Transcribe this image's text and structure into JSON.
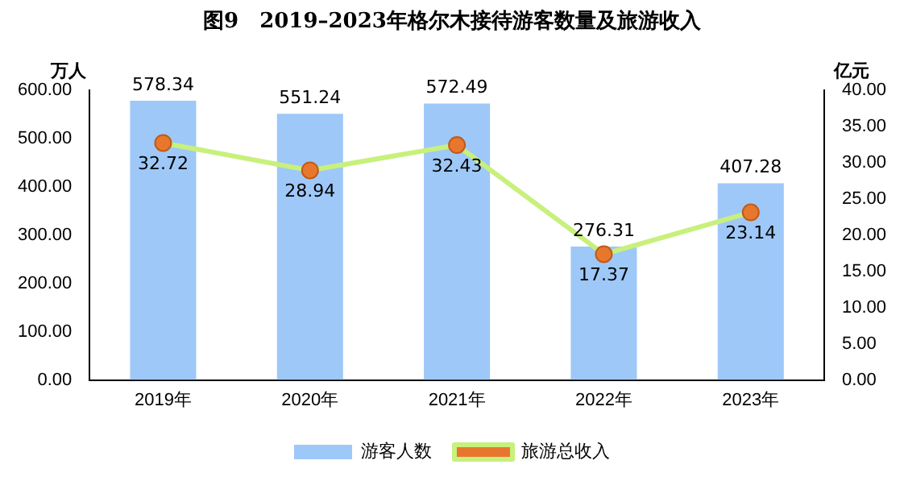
{
  "chart_data": {
    "type": "bar",
    "title": "图9　2019–2023年格尔木接待游客数量及旅游收入",
    "ylabel": "万人",
    "y2label": "亿元",
    "categories": [
      "2019年",
      "2020年",
      "2021年",
      "2022年",
      "2023年"
    ],
    "series": [
      {
        "name": "游客人数",
        "color": "#9ec8f8",
        "values": [
          578.34,
          551.24,
          572.49,
          276.31,
          407.28
        ]
      },
      {
        "name": "旅游总收入",
        "type": "line",
        "axis": "y2",
        "color": "#c8f07c",
        "marker": "circle",
        "line_style": "solid",
        "values": [
          32.72,
          28.94,
          32.43,
          17.37,
          23.14
        ]
      }
    ],
    "ylim": [
      0,
      600
    ],
    "yticks": [
      {
        "value": 0,
        "label": "0.00"
      },
      {
        "value": 100,
        "label": "100.00"
      },
      {
        "value": 200,
        "label": "200.00"
      },
      {
        "value": 300,
        "label": "300.00"
      },
      {
        "value": 400,
        "label": "400.00"
      },
      {
        "value": 500,
        "label": "500.00"
      },
      {
        "value": 600,
        "label": "600.00"
      }
    ],
    "y2lim": [
      0,
      40
    ],
    "y2ticks": [
      {
        "value": 0,
        "label": "0.00"
      },
      {
        "value": 5,
        "label": "5.00"
      },
      {
        "value": 10,
        "label": "10.00"
      },
      {
        "value": 15,
        "label": "15.00"
      },
      {
        "value": 20,
        "label": "20.00"
      },
      {
        "value": 25,
        "label": "25.00"
      },
      {
        "value": 30,
        "label": "30.00"
      },
      {
        "value": 35,
        "label": "35.00"
      },
      {
        "value": 40,
        "label": "40.00"
      }
    ],
    "grid": false,
    "legend": "bottom",
    "data_labels": true
  }
}
